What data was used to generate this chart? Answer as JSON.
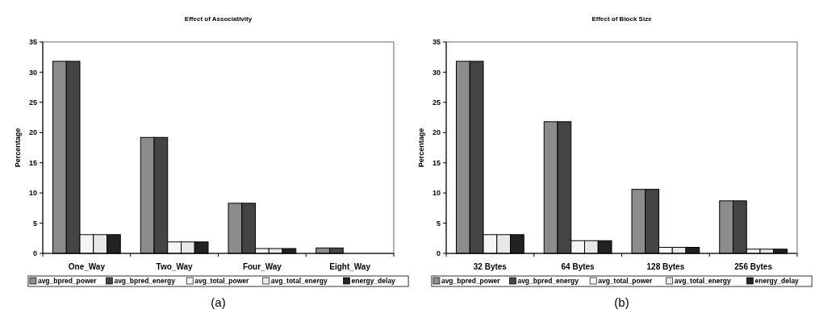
{
  "chart_data": [
    {
      "type": "bar",
      "title": "Effect of Associativity",
      "ylabel": "Percentage",
      "categories": [
        "One_Way",
        "Two_Way",
        "Four_Way",
        "Eight_Way"
      ],
      "ylim": [
        0,
        35
      ],
      "yticks": [
        0,
        5,
        10,
        15,
        20,
        25,
        30,
        35
      ],
      "legend": "bottom",
      "annotations": [
        "(a)"
      ],
      "series": [
        {
          "name": "avg_bpred_power",
          "color": "#8c8c8c",
          "values": [
            31.8,
            19.2,
            8.3,
            0.9
          ]
        },
        {
          "name": "avg_bpred_energy",
          "color": "#444444",
          "values": [
            31.8,
            19.2,
            8.3,
            0.9
          ]
        },
        {
          "name": "avg_total_power",
          "color": "#f5f5f5",
          "values": [
            3.1,
            1.9,
            0.8,
            0
          ]
        },
        {
          "name": "avg_total_energy",
          "color": "#e8e8e8",
          "values": [
            3.1,
            1.9,
            0.8,
            0
          ]
        },
        {
          "name": "energy_delay",
          "color": "#222222",
          "values": [
            3.1,
            1.9,
            0.8,
            0
          ]
        }
      ]
    },
    {
      "type": "bar",
      "title": "Effect of Block Size",
      "ylabel": "Percentage",
      "categories": [
        "32 Bytes",
        "64 Bytes",
        "128 Bytes",
        "256 Bytes"
      ],
      "ylim": [
        0,
        35
      ],
      "yticks": [
        0,
        5,
        10,
        15,
        20,
        25,
        30,
        35
      ],
      "legend": "bottom",
      "annotations": [
        "(b)"
      ],
      "series": [
        {
          "name": "avg_bpred_power",
          "color": "#8c8c8c",
          "values": [
            31.8,
            21.8,
            10.6,
            8.7
          ]
        },
        {
          "name": "avg_bpred_energy",
          "color": "#444444",
          "values": [
            31.8,
            21.8,
            10.6,
            8.7
          ]
        },
        {
          "name": "avg_total_power",
          "color": "#f5f5f5",
          "values": [
            3.1,
            2.1,
            1.0,
            0.7
          ]
        },
        {
          "name": "avg_total_energy",
          "color": "#e8e8e8",
          "values": [
            3.1,
            2.1,
            1.0,
            0.7
          ]
        },
        {
          "name": "energy_delay",
          "color": "#222222",
          "values": [
            3.1,
            2.1,
            1.0,
            0.7
          ]
        }
      ]
    }
  ]
}
